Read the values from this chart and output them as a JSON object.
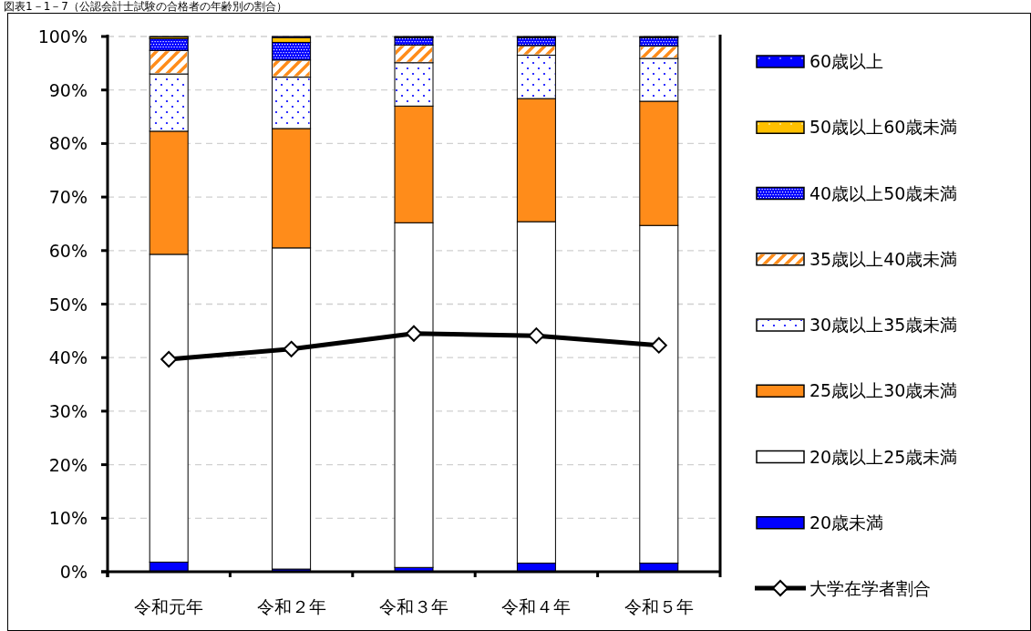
{
  "chart_data": {
    "type": "bar",
    "stacked": true,
    "title": "図表1－1－7（公認会計士試験の合格者の年齢別の割合）",
    "categories": [
      "令和元年",
      "令和２年",
      "令和３年",
      "令和４年",
      "令和５年"
    ],
    "series": [
      {
        "name": "20歳未満",
        "color": "#0000ff",
        "values": [
          1.8,
          0.5,
          0.8,
          1.6,
          1.6
        ]
      },
      {
        "name": "20歳以上25歳未満",
        "color": "#ffffff",
        "values": [
          57.5,
          60.0,
          64.4,
          63.8,
          63.1
        ]
      },
      {
        "name": "25歳以上30歳未満",
        "color": "#ff8c1a",
        "values": [
          23.0,
          22.3,
          21.8,
          23.0,
          23.2
        ]
      },
      {
        "name": "30歳以上35歳未満",
        "color": "#ffffff",
        "values": [
          10.7,
          9.6,
          8.1,
          8.1,
          8.0
        ]
      },
      {
        "name": "35歳以上40歳未満",
        "color": "#ffffff",
        "values": [
          4.4,
          3.2,
          3.3,
          1.8,
          2.3
        ]
      },
      {
        "name": "40歳以上50歳未満",
        "color": "#0000ff",
        "values": [
          2.2,
          3.3,
          1.4,
          1.5,
          1.6
        ]
      },
      {
        "name": "50歳以上60歳未満",
        "color": "#ffc000",
        "values": [
          0.3,
          0.9,
          0.1,
          0.1,
          0.1
        ]
      },
      {
        "name": "60歳以上",
        "color": "#0000ff",
        "values": [
          0.1,
          0.2,
          0.1,
          0.1,
          0.1
        ]
      },
      {
        "name": "大学在学者割合",
        "type": "line",
        "color": "#000000",
        "values": [
          39.7,
          41.6,
          44.5,
          44.1,
          42.3
        ]
      }
    ],
    "ylim": [
      0,
      100
    ],
    "yticks": [
      {
        "value": 0,
        "label": "0%"
      },
      {
        "value": 10,
        "label": "10%"
      },
      {
        "value": 20,
        "label": "20%"
      },
      {
        "value": 30,
        "label": "30%"
      },
      {
        "value": 40,
        "label": "40%"
      },
      {
        "value": 50,
        "label": "50%"
      },
      {
        "value": 60,
        "label": "60%"
      },
      {
        "value": 70,
        "label": "70%"
      },
      {
        "value": 80,
        "label": "80%"
      },
      {
        "value": 90,
        "label": "90%"
      },
      {
        "value": 100,
        "label": "100%"
      }
    ],
    "grid": "y",
    "legend": "right",
    "marker": "diamond",
    "line_style": "solid"
  }
}
